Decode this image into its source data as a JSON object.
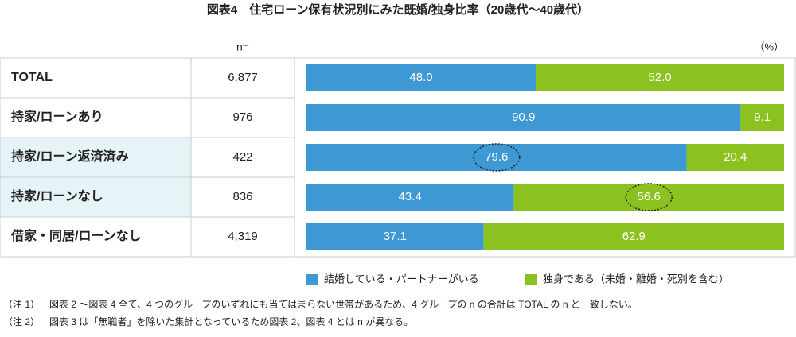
{
  "chart_data": {
    "type": "stacked_bar",
    "title": "図表4　住宅ローン保有状況別にみた既婚/独身比率（20歳代〜40歳代）",
    "n_header": "n=",
    "unit_label": "（%）",
    "categories": [
      "TOTAL",
      "持家/ローンあり",
      "持家/ローン返済済み",
      "持家/ローンなし",
      "借家・同居/ローンなし"
    ],
    "n": [
      "6,877",
      "976",
      "422",
      "836",
      "4,319"
    ],
    "xlim": [
      0,
      100
    ],
    "series": [
      {
        "name": "結婚している・パートナーがいる",
        "color": "#3e98d4",
        "values": [
          48.0,
          90.9,
          79.6,
          43.4,
          37.1
        ],
        "value_labels": [
          "48.0",
          "90.9",
          "79.6",
          "43.4",
          "37.1"
        ]
      },
      {
        "name": "独身である（未婚・離婚・死別を含む）",
        "color": "#8cc21f",
        "values": [
          52.0,
          9.1,
          20.4,
          56.6,
          62.9
        ],
        "value_labels": [
          "52.0",
          "9.1",
          "20.4",
          "56.6",
          "62.9"
        ]
      }
    ],
    "circled": [
      [
        0,
        2
      ],
      [
        1,
        3
      ]
    ],
    "shaded_rows": [
      2,
      3
    ],
    "notes": [
      [
        "（注 1）",
        "図表 2 〜図表 4 全て、4 つのグループのいずれにも当てはまらない世帯があるため、4 グループの n の合計は TOTAL の n と一致しない。"
      ],
      [
        "（注 2）",
        "図表 3 は「無職者」を除いた集計となっているため図表 2、図表 4 とは n が異なる。"
      ]
    ]
  }
}
